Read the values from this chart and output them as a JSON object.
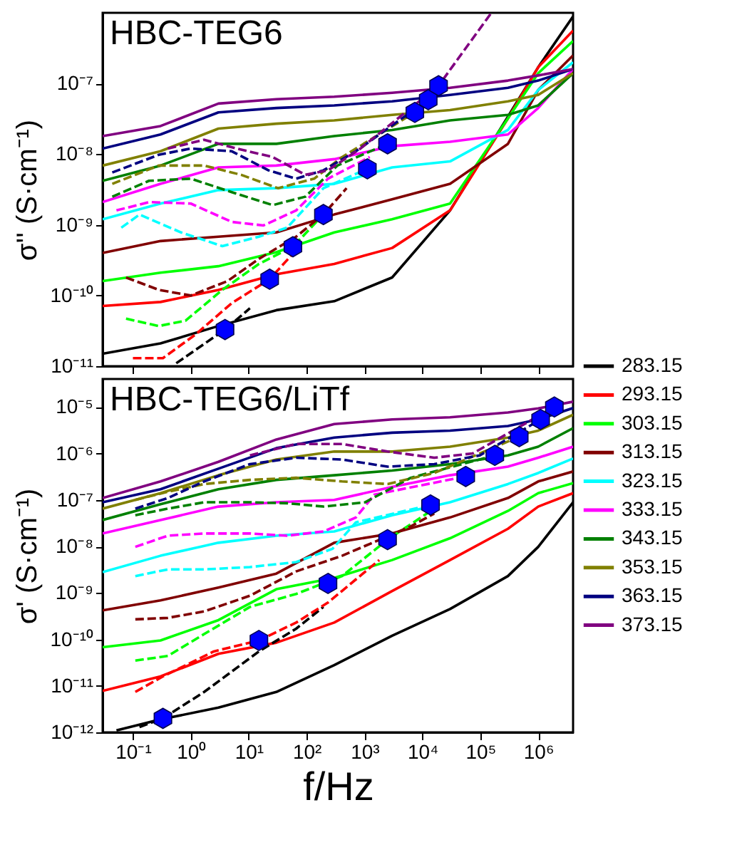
{
  "chart_data": [
    {
      "type": "line",
      "title": "HBC-TEG6",
      "ylabel": "σ'' (S·cm⁻¹)",
      "log": "xy",
      "tick_labels": "y",
      "xlim": [
        0.03,
        4000000
      ],
      "ylim": [
        1e-11,
        1e-06
      ],
      "xticks": [
        {
          "value": 0.1,
          "label": null
        },
        {
          "value": 1,
          "label": null
        },
        {
          "value": 10,
          "label": null
        },
        {
          "value": 100,
          "label": null
        },
        {
          "value": 1000,
          "label": null
        },
        {
          "value": 10000,
          "label": null
        },
        {
          "value": 100000,
          "label": null
        },
        {
          "value": 1000000,
          "label": null
        }
      ],
      "yticks": [
        {
          "value": 1e-11,
          "label": "10⁻¹¹"
        },
        {
          "value": 1e-10,
          "label": "10⁻¹⁰"
        },
        {
          "value": 1e-09,
          "label": "10⁻⁹"
        },
        {
          "value": 1e-08,
          "label": "10⁻⁸"
        },
        {
          "value": 1e-07,
          "label": "10⁻⁷"
        }
      ],
      "x": [
        0.03,
        0.3,
        3,
        30,
        300,
        3000,
        30000,
        300000,
        1000000,
        4000000
      ],
      "series": [
        {
          "color": "#000000",
          "values": [
            1.5e-11,
            2.1e-11,
            3.7e-11,
            6.2e-11,
            8.3e-11,
            1.8e-10,
            1.6e-09,
            3.4e-08,
            1.7e-07,
            8.9e-07
          ]
        },
        {
          "color": "#ff0000",
          "values": [
            7.1e-11,
            8.1e-11,
            1.2e-10,
            2e-10,
            2.8e-10,
            4.7e-10,
            1.6e-09,
            3.2e-08,
            1.7e-07,
            5.6e-07
          ]
        },
        {
          "color": "#00ff00",
          "values": [
            1.6e-10,
            2.1e-10,
            2.6e-10,
            4.1e-10,
            7.8e-10,
            1.2e-09,
            2e-09,
            3.2e-08,
            1.4e-07,
            4e-07
          ]
        },
        {
          "color": "#800000",
          "values": [
            4e-10,
            5.9e-10,
            6.8e-10,
            7.8e-10,
            1.4e-09,
            2.3e-09,
            3.8e-09,
            1.4e-08,
            8.1e-08,
            2.5e-07
          ]
        },
        {
          "color": "#00ffff",
          "values": [
            1.2e-09,
            2e-09,
            3.1e-09,
            3.3e-09,
            3.8e-09,
            6.5e-09,
            7.9e-09,
            2.2e-08,
            8.1e-08,
            2e-07
          ]
        },
        {
          "color": "#ff00ff",
          "values": [
            2.1e-09,
            3.8e-09,
            6.5e-09,
            6.9e-09,
            8.5e-09,
            1.3e-08,
            1.5e-08,
            1.9e-08,
            4.5e-08,
            1.6e-07
          ]
        },
        {
          "color": "#008000",
          "values": [
            4.2e-09,
            6.9e-09,
            1.4e-08,
            1.4e-08,
            1.8e-08,
            2.2e-08,
            3e-08,
            3.6e-08,
            4.9e-08,
            1.4e-07
          ]
        },
        {
          "color": "#808000",
          "values": [
            6.9e-09,
            1.1e-08,
            2.3e-08,
            2.7e-08,
            3e-08,
            3.6e-08,
            4.2e-08,
            5.6e-08,
            6.9e-08,
            1.4e-07
          ]
        },
        {
          "color": "#000080",
          "values": [
            1.2e-08,
            1.9e-08,
            3.9e-08,
            4.5e-08,
            4.9e-08,
            5.6e-08,
            6.9e-08,
            8.7e-08,
            1.1e-07,
            1.6e-07
          ]
        },
        {
          "color": "#800080",
          "values": [
            1.8e-08,
            2.5e-08,
            5.2e-08,
            6e-08,
            6.5e-08,
            7.4e-08,
            8.7e-08,
            1.1e-07,
            1.3e-07,
            1.6e-07
          ]
        },
        {
          "color": "#000000",
          "line_style": "dashed",
          "x": [
            0.56,
            3.9,
            10.5
          ],
          "values": [
            1.1e-11,
            3.3e-11,
            6.6e-11
          ]
        },
        {
          "color": "#ff0000",
          "line_style": "dashed",
          "x": [
            0.1,
            0.33,
            1.2,
            5.1,
            23,
            66
          ],
          "values": [
            1.3e-11,
            1.3e-11,
            2.8e-11,
            7.8e-11,
            1.7e-10,
            4.4e-10
          ]
        },
        {
          "color": "#00ff00",
          "line_style": "dashed",
          "x": [
            0.076,
            0.28,
            0.81,
            3.5,
            15,
            58,
            195
          ],
          "values": [
            4.7e-11,
            3.7e-11,
            4.4e-11,
            1.2e-10,
            2.8e-10,
            4.9e-10,
            1.4e-09
          ]
        },
        {
          "color": "#800000",
          "line_style": "dashed",
          "x": [
            0.076,
            0.28,
            1,
            4.3,
            15,
            66,
            195,
            490
          ],
          "values": [
            1.8e-10,
            1.2e-10,
            1e-10,
            1.6e-10,
            3.3e-10,
            6.8e-10,
            1.4e-09,
            3.3e-09
          ]
        },
        {
          "color": "#00ffff",
          "line_style": "dashed",
          "x": [
            0.063,
            0.13,
            0.68,
            3.5,
            15,
            46,
            195,
            1120
          ],
          "values": [
            9.1e-10,
            1.4e-09,
            7.8e-10,
            5e-10,
            6.8e-10,
            9.1e-10,
            3.3e-09,
            6.2e-09
          ]
        },
        {
          "color": "#ff00ff",
          "line_style": "dashed",
          "x": [
            0.052,
            0.19,
            1,
            5.1,
            18,
            66,
            234,
            1230
          ],
          "values": [
            1.6e-09,
            2.1e-09,
            2e-09,
            1.1e-09,
            9.8e-10,
            1.6e-09,
            4.5e-09,
            9.1e-09
          ]
        },
        {
          "color": "#008000",
          "line_style": "dashed",
          "x": [
            0.044,
            0.19,
            1,
            5.1,
            26,
            95,
            340,
            2500
          ],
          "values": [
            2.5e-09,
            4.2e-09,
            4.5e-09,
            2.9e-09,
            1.9e-09,
            2.5e-09,
            6.9e-09,
            1.4e-08
          ]
        },
        {
          "color": "#808000",
          "line_style": "dashed",
          "x": [
            0.044,
            0.28,
            1.7,
            7.4,
            32,
            135,
            410,
            7400
          ],
          "values": [
            3.8e-09,
            6.9e-09,
            6.9e-09,
            5.1e-09,
            3.3e-09,
            4.5e-09,
            9.1e-09,
            3.9e-08
          ]
        },
        {
          "color": "#000080",
          "line_style": "dashed",
          "x": [
            0.044,
            0.28,
            1,
            5.1,
            22,
            66,
            195,
            710,
            12600
          ],
          "values": [
            5.5e-09,
            9.8e-09,
            1.2e-08,
            1.1e-08,
            5.9e-09,
            4.5e-09,
            5.9e-09,
            1.1e-08,
            5.9e-08
          ]
        },
        {
          "color": "#800080",
          "line_style": "dashed",
          "x": [
            0.4,
            1.7,
            6.2,
            26,
            95,
            234,
            850,
            19000,
            155000
          ],
          "values": [
            1.2e-08,
            1.6e-08,
            1.2e-08,
            9.1e-09,
            5.1e-09,
            5.9e-09,
            1.2e-08,
            9.3e-08,
            1e-06
          ]
        },
        {
          "type": "scatter",
          "color": "#0000ff",
          "x": [
            3.9,
            23,
            58,
            195,
            1120,
            2500,
            7400,
            12600,
            19000
          ],
          "values": [
            3.3e-11,
            1.7e-10,
            4.9e-10,
            1.4e-09,
            6.2e-09,
            1.4e-08,
            3.9e-08,
            5.9e-08,
            9.3e-08
          ]
        }
      ]
    },
    {
      "type": "line",
      "title": "HBC-TEG6/LiTf",
      "xlabel": "f/Hz",
      "ylabel": "σ' (S·cm⁻¹)",
      "log": "xy",
      "legend": "right",
      "xlim": [
        0.03,
        4000000
      ],
      "ylim": [
        1e-12,
        4e-05
      ],
      "xticks": [
        {
          "value": 0.1,
          "label": "10⁻¹"
        },
        {
          "value": 1,
          "label": "10⁰"
        },
        {
          "value": 10,
          "label": "10¹"
        },
        {
          "value": 100,
          "label": "10²"
        },
        {
          "value": 1000,
          "label": "10³"
        },
        {
          "value": 10000,
          "label": "10⁴"
        },
        {
          "value": 100000,
          "label": "10⁵"
        },
        {
          "value": 1000000,
          "label": "10⁶"
        }
      ],
      "yticks": [
        {
          "value": 1e-12,
          "label": "10⁻¹²"
        },
        {
          "value": 1e-11,
          "label": "10⁻¹¹"
        },
        {
          "value": 1e-10,
          "label": "10⁻¹⁰"
        },
        {
          "value": 1e-09,
          "label": "10⁻⁹"
        },
        {
          "value": 1e-08,
          "label": "10⁻⁸"
        },
        {
          "value": 1e-07,
          "label": "10⁻⁷"
        },
        {
          "value": 1e-06,
          "label": "10⁻⁶"
        },
        {
          "value": 1e-05,
          "label": "10⁻⁵"
        }
      ],
      "x": [
        0.03,
        0.3,
        3,
        30,
        300,
        3000,
        30000,
        300000,
        1000000,
        4000000
      ],
      "series": [
        {
          "name": "283.15",
          "color": "#000000",
          "x": [
            0.052,
            0.3,
            3,
            30,
            300,
            3000,
            30000,
            300000,
            1000000,
            4000000
          ],
          "values": [
            1.1e-12,
            1.9e-12,
            3.4e-12,
            7.4e-12,
            2.8e-11,
            1.2e-10,
            4.5e-10,
            2.3e-09,
            9.8e-09,
            8.9e-08
          ]
        },
        {
          "name": "293.15",
          "color": "#ff0000",
          "values": [
            7.8e-12,
            1.6e-11,
            4.9e-11,
            8.5e-11,
            2.3e-10,
            1.1e-09,
            5.1e-09,
            2.4e-08,
            7.2e-08,
            1.4e-07
          ]
        },
        {
          "name": "303.15",
          "color": "#00ff00",
          "values": [
            6.8e-11,
            9.5e-11,
            2.6e-10,
            1.2e-09,
            2.1e-09,
            5.1e-09,
            1.5e-08,
            5.8e-08,
            1.4e-07,
            2.3e-07
          ]
        },
        {
          "name": "313.15",
          "color": "#800000",
          "values": [
            4.2e-10,
            6.9e-10,
            1.3e-09,
            2.6e-09,
            1.2e-08,
            1.9e-08,
            4.2e-08,
            1.1e-07,
            2.5e-07,
            4.1e-07
          ]
        },
        {
          "name": "323.15",
          "color": "#00ffff",
          "values": [
            2.8e-09,
            6.3e-09,
            1.2e-08,
            1.7e-08,
            2.1e-08,
            4.7e-08,
            8.9e-08,
            2.2e-07,
            3.8e-07,
            7.8e-07
          ]
        },
        {
          "name": "333.15",
          "color": "#ff00ff",
          "values": [
            1.9e-08,
            3.7e-08,
            7.2e-08,
            8.9e-08,
            1e-07,
            1.9e-07,
            3.4e-07,
            5.2e-07,
            8.1e-07,
            1.4e-06
          ]
        },
        {
          "name": "343.15",
          "color": "#008000",
          "values": [
            3.7e-08,
            8.1e-08,
            1.7e-07,
            2.7e-07,
            3.4e-07,
            4.3e-07,
            5.9e-07,
            9.1e-07,
            1.4e-06,
            3.5e-06
          ]
        },
        {
          "name": "353.15",
          "color": "#808000",
          "values": [
            6.5e-08,
            1.4e-07,
            3.4e-07,
            7.4e-07,
            1.1e-06,
            1.1e-06,
            1.4e-06,
            2.2e-06,
            3.1e-06,
            6.8e-06
          ]
        },
        {
          "name": "363.15",
          "color": "#000080",
          "values": [
            8.9e-08,
            1.7e-07,
            4.7e-07,
            1.3e-06,
            2.2e-06,
            2.8e-06,
            3.1e-06,
            3.9e-06,
            5.4e-06,
            9.5e-06
          ]
        },
        {
          "name": "373.15",
          "color": "#800080",
          "values": [
            1.1e-07,
            2.5e-07,
            6.6e-07,
            2e-06,
            4.3e-06,
            5.4e-06,
            6e-06,
            7.6e-06,
            9.3e-06,
            1.3e-05
          ]
        },
        {
          "color": "#000000",
          "line_style": "dashed",
          "x": [
            0.13,
            0.33,
            1.7,
            15,
            66,
            195
          ],
          "values": [
            1.3e-12,
            2e-12,
            7.4e-12,
            5.5e-11,
            1.7e-10,
            5e-10
          ]
        },
        {
          "color": "#ff0000",
          "line_style": "dashed",
          "x": [
            0.11,
            0.33,
            2.5,
            15,
            66,
            234,
            1800
          ],
          "values": [
            7.4e-12,
            1.6e-11,
            5.5e-11,
            9.5e-11,
            2.3e-10,
            6.2e-10,
            5.1e-09
          ]
        },
        {
          "color": "#00ff00",
          "line_style": "dashed",
          "x": [
            0.11,
            0.4,
            1.7,
            10.5,
            66,
            410,
            2500,
            16000
          ],
          "values": [
            3.5e-11,
            4.4e-11,
            1.3e-10,
            5e-10,
            9.5e-10,
            2.3e-09,
            1.4e-08,
            6.5e-08
          ]
        },
        {
          "color": "#800000",
          "line_style": "dashed",
          "x": [
            0.11,
            0.4,
            1.7,
            10.5,
            66,
            410,
            6300,
            16000
          ],
          "values": [
            2.7e-10,
            2.9e-10,
            4e-10,
            8.7e-10,
            2.9e-09,
            6.3e-09,
            2.7e-08,
            5.1e-08
          ]
        },
        {
          "color": "#00ffff",
          "line_style": "dashed",
          "x": [
            0.11,
            0.4,
            1.7,
            10.5,
            66,
            280,
            710,
            13800
          ],
          "values": [
            2.3e-09,
            3.2e-09,
            3.2e-09,
            3.6e-09,
            4.6e-09,
            8.9e-09,
            3.3e-08,
            7.8e-08
          ]
        },
        {
          "color": "#ff00ff",
          "line_style": "dashed",
          "x": [
            0.11,
            0.4,
            1.7,
            10.5,
            46,
            195,
            710,
            1480,
            56000
          ],
          "values": [
            9.8e-09,
            1.7e-08,
            1.9e-08,
            1.9e-08,
            1.7e-08,
            2.1e-08,
            4.2e-08,
            1.3e-07,
            3.2e-07
          ]
        },
        {
          "color": "#008000",
          "line_style": "dashed",
          "x": [
            0.11,
            0.4,
            1.7,
            10.5,
            46,
            195,
            1020,
            6300,
            178000
          ],
          "values": [
            4.7e-08,
            6.5e-08,
            8.9e-08,
            8.9e-08,
            8.5e-08,
            7.2e-08,
            8.9e-08,
            3e-07,
            9.1e-07
          ]
        },
        {
          "color": "#808000",
          "line_style": "dashed",
          "x": [
            0.11,
            0.4,
            1.7,
            10.5,
            66,
            410,
            2500,
            16000,
            470000
          ],
          "values": [
            1e-07,
            1.5e-07,
            2.2e-07,
            2.7e-07,
            3e-07,
            2.5e-07,
            2.2e-07,
            3.8e-07,
            2.3e-06
          ]
        },
        {
          "color": "#000080",
          "line_style": "dashed",
          "x": [
            0.11,
            0.4,
            1.7,
            10.5,
            66,
            410,
            2500,
            16000,
            98000,
            1100000
          ],
          "values": [
            6.5e-08,
            1.1e-07,
            2.5e-07,
            5.9e-07,
            8.1e-07,
            7.4e-07,
            5.2e-07,
            5.9e-07,
            9.1e-07,
            5.4e-06
          ]
        },
        {
          "color": "#800080",
          "line_style": "dashed",
          "x": [
            10.5,
            66,
            410,
            2500,
            16000,
            74000,
            1900000
          ],
          "values": [
            9.1e-07,
            1.6e-06,
            1.6e-06,
            1.1e-06,
            8.1e-07,
            1e-06,
            1e-05
          ]
        },
        {
          "type": "scatter",
          "color": "#0000ff",
          "x": [
            0.33,
            15,
            234,
            2500,
            13800,
            56000,
            178000,
            470000,
            1100000,
            1900000
          ],
          "values": [
            2e-12,
            9.5e-11,
            1.6e-09,
            1.4e-08,
            7.8e-08,
            3.2e-07,
            9.1e-07,
            2.3e-06,
            5.4e-06,
            1e-05
          ]
        }
      ]
    }
  ]
}
